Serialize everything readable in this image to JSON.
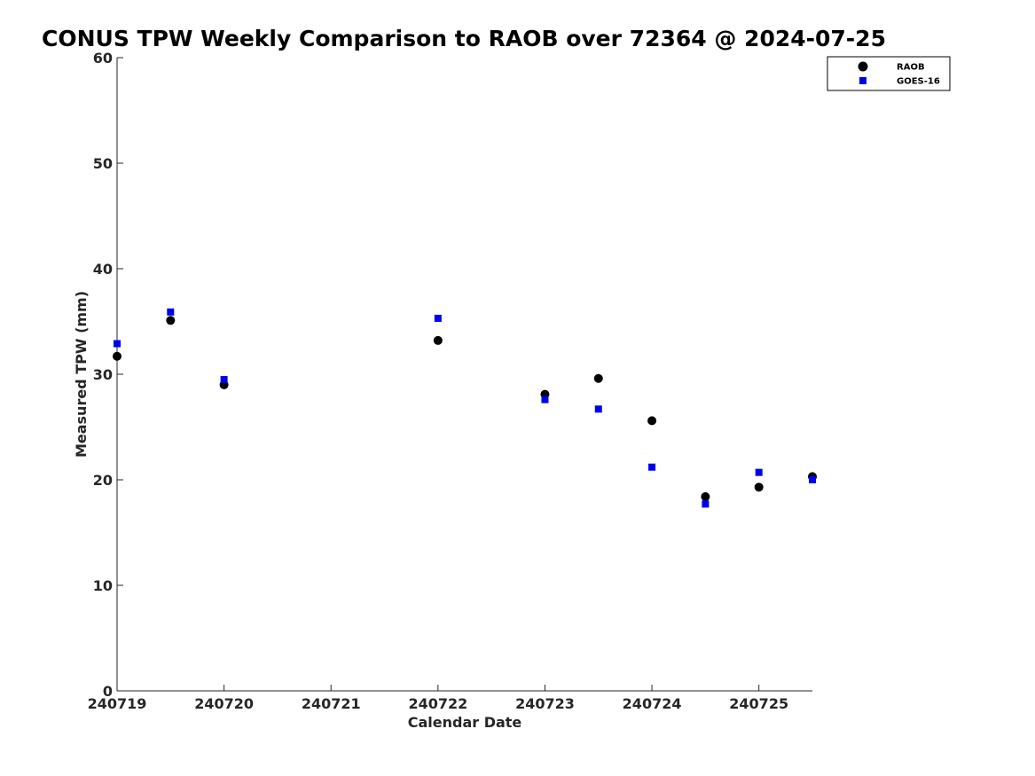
{
  "chart_data": {
    "type": "scatter",
    "title": "CONUS TPW Weekly Comparison to RAOB over 72364 @ 2024-07-25",
    "xlabel": "Calendar Date",
    "ylabel": "Measured TPW (mm)",
    "xlim": [
      240719,
      240725.5
    ],
    "ylim": [
      0,
      60
    ],
    "xticks": [
      240719,
      240720,
      240721,
      240722,
      240723,
      240724,
      240725
    ],
    "xtick_labels": [
      "240719",
      "240720",
      "240721",
      "240722",
      "240723",
      "240724",
      "240725"
    ],
    "yticks": [
      0,
      10,
      20,
      30,
      40,
      50,
      60
    ],
    "ytick_labels": [
      "0",
      "10",
      "20",
      "30",
      "40",
      "50",
      "60"
    ],
    "grid": false,
    "legend_position": "top-right",
    "series": [
      {
        "name": "RAOB",
        "color": "#000000",
        "marker": "circle",
        "x": [
          240719,
          240719.5,
          240720,
          240722,
          240723,
          240723.5,
          240724,
          240724.5,
          240725,
          240725.5
        ],
        "y": [
          31.7,
          35.1,
          29.0,
          33.2,
          28.1,
          29.6,
          25.6,
          18.4,
          19.3,
          20.3
        ]
      },
      {
        "name": "GOES-16",
        "color": "#0000ee",
        "marker": "square",
        "x": [
          240719,
          240719.5,
          240720,
          240722,
          240723,
          240723.5,
          240724,
          240724.5,
          240725,
          240725.5
        ],
        "y": [
          32.9,
          35.9,
          29.5,
          35.3,
          27.6,
          26.7,
          21.2,
          17.7,
          20.7,
          20.0
        ]
      }
    ]
  }
}
